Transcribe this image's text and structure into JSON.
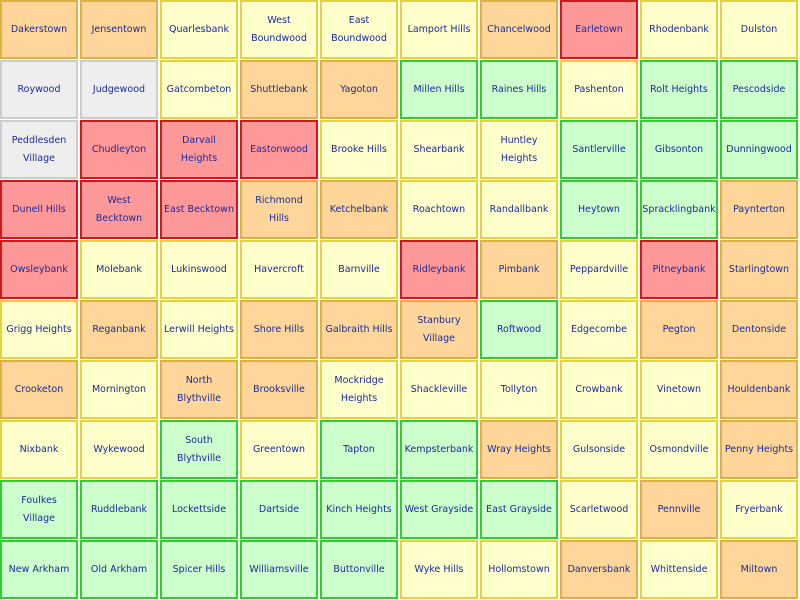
{
  "legend": {
    "r": "#ff9999",
    "o": "#ffd699",
    "y": "#ffffcc",
    "g": "#ccffcc",
    "w": "#eeeeee"
  },
  "grid": [
    [
      [
        "Dakerstown",
        "o"
      ],
      [
        "Jensentown",
        "o"
      ],
      [
        "Quarlesbank",
        "y"
      ],
      [
        "West Boundwood",
        "y"
      ],
      [
        "East Boundwood",
        "y"
      ],
      [
        "Lamport Hills",
        "y"
      ],
      [
        "Chancelwood",
        "o"
      ],
      [
        "Earletown",
        "r"
      ],
      [
        "Rhodenbank",
        "y"
      ],
      [
        "Dulston",
        "y"
      ]
    ],
    [
      [
        "Roywood",
        "w"
      ],
      [
        "Judgewood",
        "w"
      ],
      [
        "Gatcombeton",
        "y"
      ],
      [
        "Shuttlebank",
        "o"
      ],
      [
        "Yagoton",
        "o"
      ],
      [
        "Millen Hills",
        "g"
      ],
      [
        "Raines Hills",
        "g"
      ],
      [
        "Pashenton",
        "y"
      ],
      [
        "Rolt Heights",
        "g"
      ],
      [
        "Pescodside",
        "g"
      ]
    ],
    [
      [
        "Peddlesden Village",
        "w"
      ],
      [
        "Chudleyton",
        "r"
      ],
      [
        "Darvall Heights",
        "r"
      ],
      [
        "Eastonwood",
        "r"
      ],
      [
        "Brooke Hills",
        "y"
      ],
      [
        "Shearbank",
        "y"
      ],
      [
        "Huntley Heights",
        "y"
      ],
      [
        "Santlerville",
        "g"
      ],
      [
        "Gibsonton",
        "g"
      ],
      [
        "Dunningwood",
        "g"
      ]
    ],
    [
      [
        "Dunell Hills",
        "r"
      ],
      [
        "West Becktown",
        "r"
      ],
      [
        "East Becktown",
        "r"
      ],
      [
        "Richmond Hills",
        "o"
      ],
      [
        "Ketchelbank",
        "o"
      ],
      [
        "Roachtown",
        "y"
      ],
      [
        "Randallbank",
        "y"
      ],
      [
        "Heytown",
        "g"
      ],
      [
        "Spracklingbank",
        "g"
      ],
      [
        "Paynterton",
        "o"
      ]
    ],
    [
      [
        "Owsleybank",
        "r"
      ],
      [
        "Molebank",
        "y"
      ],
      [
        "Lukinswood",
        "y"
      ],
      [
        "Havercroft",
        "y"
      ],
      [
        "Barnville",
        "y"
      ],
      [
        "Ridleybank",
        "r"
      ],
      [
        "Pimbank",
        "o"
      ],
      [
        "Peppardville",
        "y"
      ],
      [
        "Pitneybank",
        "r"
      ],
      [
        "Starlingtown",
        "o"
      ]
    ],
    [
      [
        "Grigg Heights",
        "y"
      ],
      [
        "Reganbank",
        "o"
      ],
      [
        "Lerwill Heights",
        "y"
      ],
      [
        "Shore Hills",
        "o"
      ],
      [
        "Galbraith Hills",
        "o"
      ],
      [
        "Stanbury Village",
        "o"
      ],
      [
        "Roftwood",
        "g"
      ],
      [
        "Edgecombe",
        "y"
      ],
      [
        "Pegton",
        "o"
      ],
      [
        "Dentonside",
        "o"
      ]
    ],
    [
      [
        "Crooketon",
        "o"
      ],
      [
        "Mornington",
        "y"
      ],
      [
        "North Blythville",
        "o"
      ],
      [
        "Brooksville",
        "o"
      ],
      [
        "Mockridge Heights",
        "y"
      ],
      [
        "Shackleville",
        "y"
      ],
      [
        "Tollyton",
        "y"
      ],
      [
        "Crowbank",
        "y"
      ],
      [
        "Vinetown",
        "y"
      ],
      [
        "Houldenbank",
        "o"
      ]
    ],
    [
      [
        "Nixbank",
        "y"
      ],
      [
        "Wykewood",
        "y"
      ],
      [
        "South Blythville",
        "g"
      ],
      [
        "Greentown",
        "y"
      ],
      [
        "Tapton",
        "g"
      ],
      [
        "Kempsterbank",
        "g"
      ],
      [
        "Wray Heights",
        "o"
      ],
      [
        "Gulsonside",
        "y"
      ],
      [
        "Osmondville",
        "y"
      ],
      [
        "Penny Heights",
        "o"
      ]
    ],
    [
      [
        "Foulkes Village",
        "g"
      ],
      [
        "Ruddlebank",
        "g"
      ],
      [
        "Lockettside",
        "g"
      ],
      [
        "Dartside",
        "g"
      ],
      [
        "Kinch Heights",
        "g"
      ],
      [
        "West Grayside",
        "g"
      ],
      [
        "East Grayside",
        "g"
      ],
      [
        "Scarletwood",
        "y"
      ],
      [
        "Pennville",
        "o"
      ],
      [
        "Fryerbank",
        "y"
      ]
    ],
    [
      [
        "New Arkham",
        "g"
      ],
      [
        "Old Arkham",
        "g"
      ],
      [
        "Spicer Hills",
        "g"
      ],
      [
        "Williamsville",
        "g"
      ],
      [
        "Buttonville",
        "g"
      ],
      [
        "Wyke Hills",
        "y"
      ],
      [
        "Hollomstown",
        "y"
      ],
      [
        "Danversbank",
        "o"
      ],
      [
        "Whittenside",
        "y"
      ],
      [
        "Miltown",
        "o"
      ]
    ]
  ]
}
